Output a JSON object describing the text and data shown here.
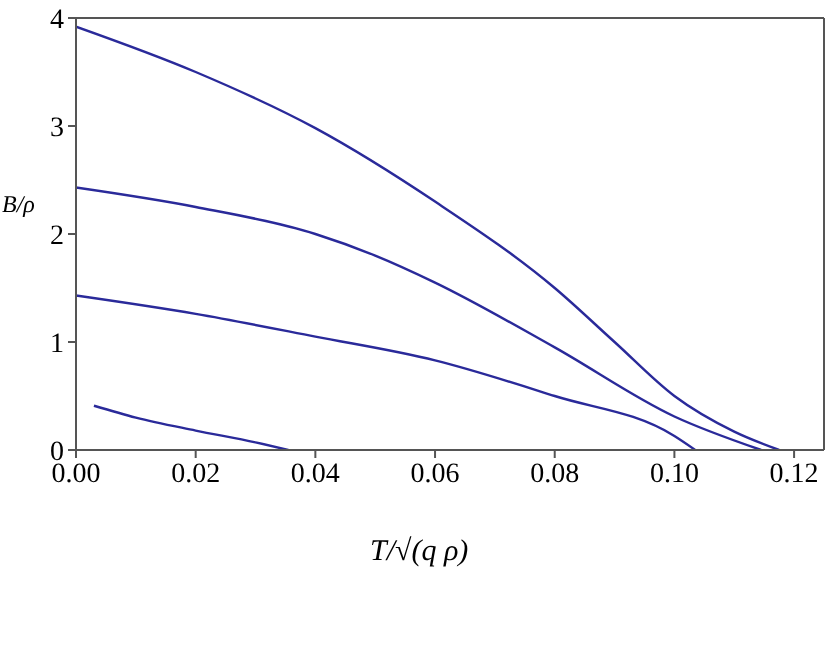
{
  "chart_data": {
    "type": "line",
    "xlabel": "T/√(q ρ)",
    "ylabel": "B/ρ",
    "xlim": [
      0,
      0.125
    ],
    "ylim": [
      0,
      4
    ],
    "xticks": [
      {
        "value": 0,
        "label": "0.00"
      },
      {
        "value": 0.02,
        "label": "0.02"
      },
      {
        "value": 0.04,
        "label": "0.04"
      },
      {
        "value": 0.06,
        "label": "0.06"
      },
      {
        "value": 0.08,
        "label": "0.08"
      },
      {
        "value": 0.1,
        "label": "0.10"
      },
      {
        "value": 0.12,
        "label": "0.12"
      }
    ],
    "yticks": [
      0,
      1,
      2,
      3,
      4
    ],
    "marker": "none",
    "line_style": "solid",
    "series": [
      {
        "color": "#2a2a9a",
        "x": [
          0,
          0.02,
          0.04,
          0.06,
          0.08,
          0.09,
          0.1,
          0.11,
          0.1175
        ],
        "values": [
          3.92,
          3.5,
          2.98,
          2.3,
          1.5,
          1.0,
          0.5,
          0.17,
          0
        ]
      },
      {
        "color": "#2a2a9a",
        "x": [
          0,
          0.02,
          0.04,
          0.05,
          0.06,
          0.08,
          0.1,
          0.1145
        ],
        "values": [
          2.43,
          2.25,
          2.0,
          1.8,
          1.55,
          0.95,
          0.31,
          0
        ]
      },
      {
        "color": "#2a2a9a",
        "x": [
          0,
          0.02,
          0.04,
          0.06,
          0.08,
          0.1,
          0.1035
        ],
        "values": [
          1.43,
          1.26,
          1.05,
          0.83,
          0.5,
          0.13,
          0
        ]
      },
      {
        "color": "#2a2a9a",
        "x": [
          0.003,
          0.01,
          0.02,
          0.03,
          0.0355
        ],
        "values": [
          0.41,
          0.3,
          0.18,
          0.07,
          0
        ]
      }
    ]
  }
}
